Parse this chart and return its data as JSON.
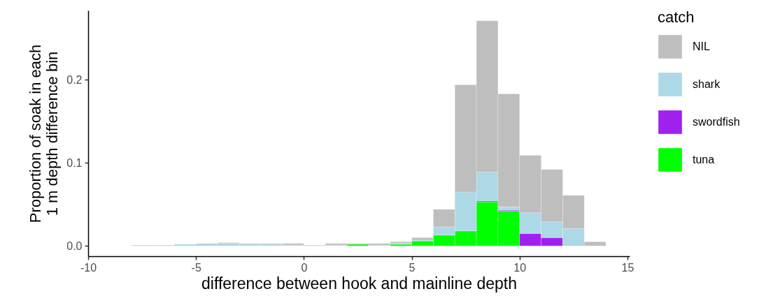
{
  "chart_data": {
    "type": "bar",
    "xlabel": "difference between hook and mainline depth",
    "ylabel": "Proportion of soak in each\n1 m depth difference bin",
    "legend_title": "catch",
    "legend": "right",
    "stacked": true,
    "x": [
      -7.5,
      -6.5,
      -5.5,
      -4.5,
      -3.5,
      -2.5,
      -1.5,
      -0.5,
      0.5,
      1.5,
      2.5,
      3.5,
      4.5,
      5.5,
      6.5,
      7.5,
      8.5,
      9.5,
      10.5,
      11.5,
      12.5,
      13.5
    ],
    "series": [
      {
        "name": "tuna",
        "color": "#00ff00",
        "values": [
          0,
          0,
          0,
          0,
          0,
          0,
          0,
          0,
          0,
          0,
          0.002,
          0,
          0.002,
          0.006,
          0.013,
          0.018,
          0.053,
          0.042,
          0,
          0,
          0,
          0
        ]
      },
      {
        "name": "swordfish",
        "color": "#a020f0",
        "values": [
          0,
          0,
          0,
          0,
          0,
          0,
          0,
          0,
          0,
          0,
          0,
          0,
          0,
          0,
          0,
          0,
          0.001,
          0.001,
          0.015,
          0.01,
          0,
          0
        ]
      },
      {
        "name": "shark",
        "color": "#add8e6",
        "values": [
          0.001,
          0.001,
          0.002,
          0.003,
          0.003,
          0.002,
          0.002,
          0.001,
          0.001,
          0.001,
          0,
          0.001,
          0.001,
          0.001,
          0.01,
          0.047,
          0.035,
          0.004,
          0.025,
          0.019,
          0.021,
          0
        ]
      },
      {
        "name": "NIL",
        "color": "#bebebe",
        "values": [
          0,
          0,
          0,
          0,
          0.001,
          0.001,
          0.001,
          0.002,
          0,
          0.002,
          0.001,
          0.002,
          0.002,
          0.003,
          0.021,
          0.129,
          0.182,
          0.136,
          0.069,
          0.063,
          0.04,
          0.005
        ]
      }
    ],
    "xlim": [
      -10,
      15.1
    ],
    "xticks": [
      -10,
      -5,
      0,
      5,
      10,
      15
    ],
    "ylim": [
      -0.0124,
      0.2835
    ],
    "yticks": [
      {
        "value": 0,
        "label": "0.0"
      },
      {
        "value": 0.1,
        "label": "0.1"
      },
      {
        "value": 0.2,
        "label": "0.2"
      }
    ]
  }
}
